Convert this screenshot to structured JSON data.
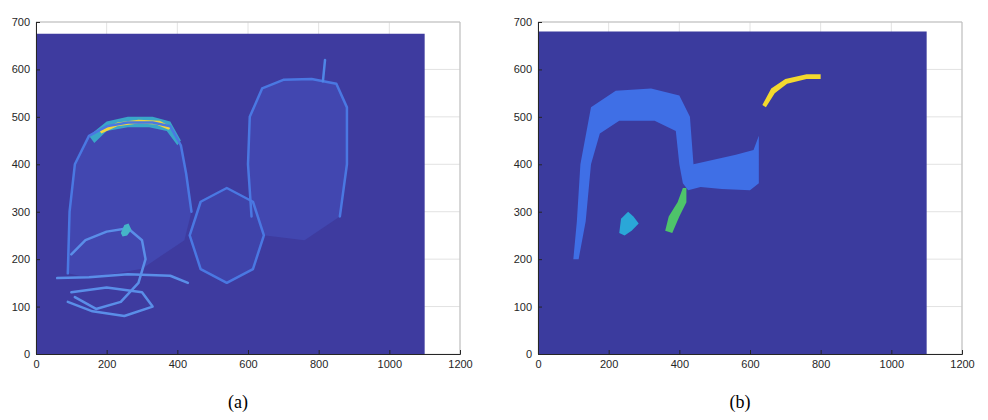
{
  "chart_data": [
    {
      "type": "image",
      "caption": "(a)",
      "xlim": [
        0,
        1200
      ],
      "ylim": [
        0,
        700
      ],
      "xticks": [
        0,
        200,
        400,
        600,
        800,
        1000,
        1200
      ],
      "yticks": [
        0,
        100,
        200,
        300,
        400,
        500,
        600,
        700
      ],
      "grid": true,
      "series": [
        {
          "type": "area",
          "color": "#3e3b9f",
          "x": [
            0,
            1100,
            1100,
            0
          ],
          "values": [
            0,
            0,
            675,
            675
          ]
        },
        {
          "type": "area",
          "color": "#4247b0",
          "x": [
            90,
            95,
            110,
            150,
            200,
            260,
            330,
            380,
            410,
            425,
            440,
            420,
            300,
            150
          ],
          "values": [
            170,
            300,
            400,
            460,
            480,
            488,
            488,
            480,
            440,
            380,
            300,
            240,
            180,
            160
          ]
        },
        {
          "type": "area",
          "color": "#4247b0",
          "x": [
            610,
            600,
            605,
            640,
            700,
            780,
            850,
            880,
            880,
            860,
            760,
            650
          ],
          "values": [
            290,
            400,
            500,
            560,
            578,
            580,
            570,
            520,
            400,
            290,
            240,
            250
          ]
        },
        {
          "type": "area",
          "color": "#3f43aa",
          "x": [
            645,
            614,
            540,
            466,
            435,
            466,
            540,
            614,
            645
          ],
          "values": [
            250,
            321,
            350,
            321,
            250,
            179,
            150,
            179,
            250
          ]
        },
        {
          "type": "area",
          "color": "#3aa6c8",
          "x": [
            150,
            200,
            260,
            330,
            380,
            410,
            400,
            370,
            320,
            260,
            200,
            165
          ],
          "values": [
            460,
            490,
            500,
            500,
            490,
            450,
            440,
            470,
            478,
            478,
            470,
            445
          ]
        },
        {
          "type": "area",
          "color": "#f2d43c",
          "x": [
            180,
            230,
            290,
            350,
            385,
            375,
            340,
            290,
            230,
            185
          ],
          "values": [
            470,
            488,
            494,
            492,
            478,
            473,
            484,
            486,
            480,
            465
          ]
        },
        {
          "type": "line",
          "color": "#4a78e2",
          "x": [
            90,
            95,
            110,
            150,
            200,
            260,
            330,
            380,
            410,
            425,
            440
          ],
          "values": [
            170,
            300,
            400,
            460,
            480,
            488,
            488,
            480,
            440,
            380,
            300
          ]
        },
        {
          "type": "line",
          "color": "#4a78e2",
          "x": [
            610,
            600,
            605,
            640,
            700,
            780,
            850,
            880,
            880,
            860
          ],
          "values": [
            290,
            400,
            500,
            560,
            578,
            580,
            570,
            520,
            400,
            290
          ]
        },
        {
          "type": "line",
          "color": "#4f86e6",
          "x": [
            812,
            818
          ],
          "values": [
            575,
            620
          ]
        },
        {
          "type": "line",
          "color": "#4a78e2",
          "x": [
            645,
            614,
            540,
            466,
            435,
            466,
            540,
            614,
            645
          ],
          "values": [
            250,
            321,
            350,
            321,
            250,
            179,
            150,
            179,
            250
          ]
        },
        {
          "type": "line",
          "color": "#5a8ee8",
          "x": [
            60,
            150,
            260,
            380,
            430
          ],
          "values": [
            160,
            162,
            168,
            165,
            150
          ]
        },
        {
          "type": "line",
          "color": "#5a8ee8",
          "x": [
            100,
            140,
            200,
            260,
            300,
            310,
            290,
            240,
            170,
            110
          ],
          "values": [
            210,
            240,
            258,
            265,
            240,
            200,
            150,
            110,
            95,
            120
          ]
        },
        {
          "type": "area",
          "color": "#45b5c8",
          "x": [
            240,
            250,
            262,
            270,
            258,
            245
          ],
          "values": [
            255,
            272,
            275,
            262,
            250,
            248
          ]
        },
        {
          "type": "line",
          "color": "#5a8ee8",
          "x": [
            90,
            160,
            250,
            330,
            300,
            200,
            100
          ],
          "values": [
            110,
            90,
            80,
            100,
            130,
            140,
            130
          ]
        }
      ]
    },
    {
      "type": "image",
      "caption": "(b)",
      "xlim": [
        0,
        1200
      ],
      "ylim": [
        0,
        700
      ],
      "xticks": [
        0,
        200,
        400,
        600,
        800,
        1000,
        1200
      ],
      "yticks": [
        0,
        100,
        200,
        300,
        400,
        500,
        600,
        700
      ],
      "grid": true,
      "series": [
        {
          "type": "area",
          "color": "#3b3b9e",
          "x": [
            0,
            1100,
            1100,
            0
          ],
          "values": [
            0,
            0,
            680,
            680
          ]
        },
        {
          "type": "area",
          "color": "#3f6fe6",
          "x": [
            100,
            110,
            120,
            150,
            220,
            320,
            400,
            430,
            440,
            500,
            560,
            610,
            625,
            625,
            600,
            520,
            460,
            425,
            410,
            400,
            390,
            330,
            230,
            175,
            150,
            135,
            115
          ],
          "values": [
            200,
            280,
            400,
            520,
            555,
            560,
            545,
            500,
            400,
            410,
            420,
            430,
            460,
            360,
            345,
            348,
            352,
            345,
            360,
            400,
            470,
            492,
            492,
            465,
            400,
            280,
            200
          ]
        },
        {
          "type": "area",
          "color": "#2aa7d8",
          "x": [
            230,
            235,
            255,
            270,
            285,
            265,
            245
          ],
          "values": [
            255,
            285,
            300,
            290,
            275,
            260,
            250
          ]
        },
        {
          "type": "area",
          "color": "#4ec46a",
          "x": [
            360,
            370,
            395,
            410,
            420,
            420,
            400,
            380
          ],
          "values": [
            260,
            290,
            320,
            350,
            350,
            320,
            290,
            255
          ]
        },
        {
          "type": "area",
          "color": "#f3d92e",
          "x": [
            635,
            660,
            700,
            760,
            800,
            800,
            760,
            705,
            670,
            645
          ],
          "values": [
            525,
            560,
            580,
            590,
            590,
            580,
            580,
            570,
            550,
            520
          ]
        }
      ]
    }
  ]
}
